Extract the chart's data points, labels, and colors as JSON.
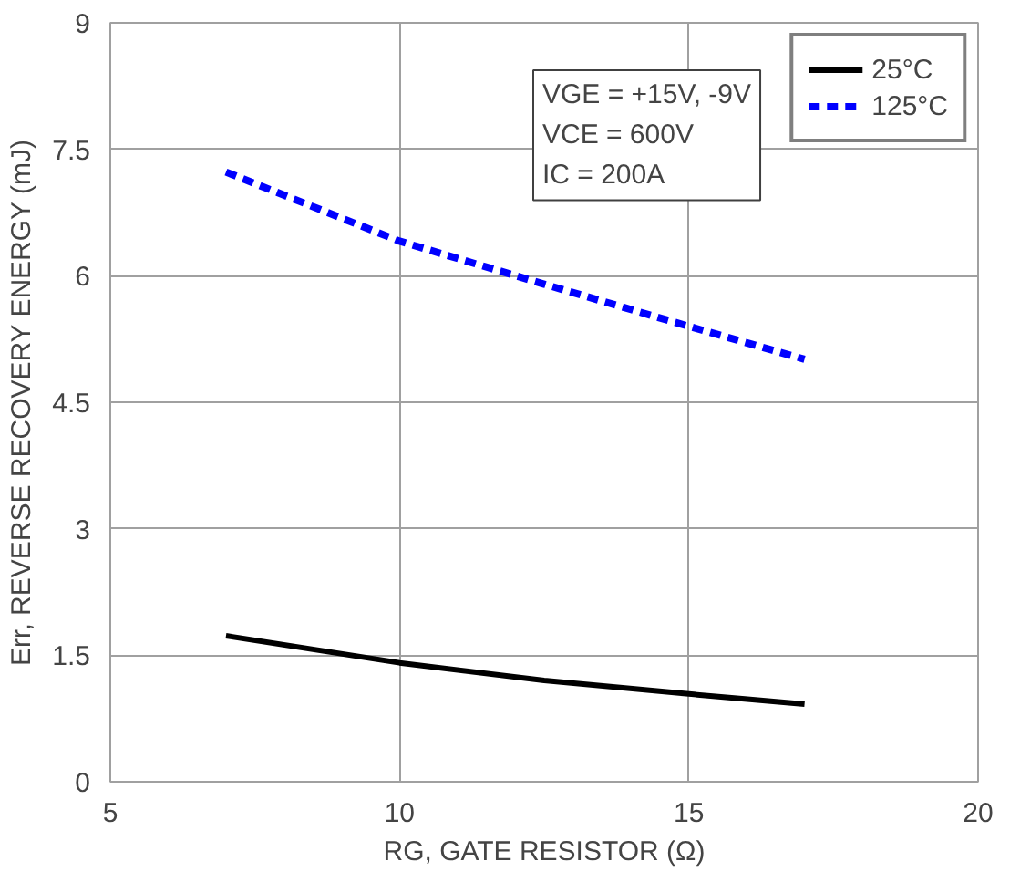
{
  "chart_data": {
    "type": "line",
    "xlabel": "RG, GATE RESISTOR (Ω)",
    "ylabel": "Err, REVERSE RECOVERY ENERGY (mJ)",
    "x": [
      7,
      10,
      12.5,
      15,
      17
    ],
    "series": [
      {
        "name": "25°C",
        "color": "#000000",
        "line_style": "solid",
        "values": [
          1.73,
          1.41,
          1.2,
          1.04,
          0.92
        ]
      },
      {
        "name": "125°C",
        "color": "#0000ff",
        "line_style": "dashed",
        "values": [
          7.23,
          6.41,
          5.9,
          5.4,
          5.01
        ]
      }
    ],
    "xlim": [
      5,
      20
    ],
    "xticks": [
      5,
      10,
      15,
      20
    ],
    "ylim": [
      0,
      9
    ],
    "yticks": [
      0,
      {
        "value": 1.5,
        "label": "1.5"
      },
      3,
      {
        "value": 4.5,
        "label": "4.5"
      },
      6,
      {
        "value": 7.5,
        "label": "7.5"
      },
      9
    ],
    "grid": true,
    "legend": "top right",
    "marker": "none",
    "annotations": [
      "VGE = +15V, -9V",
      "VCE = 600V",
      "IC = 200A"
    ]
  }
}
